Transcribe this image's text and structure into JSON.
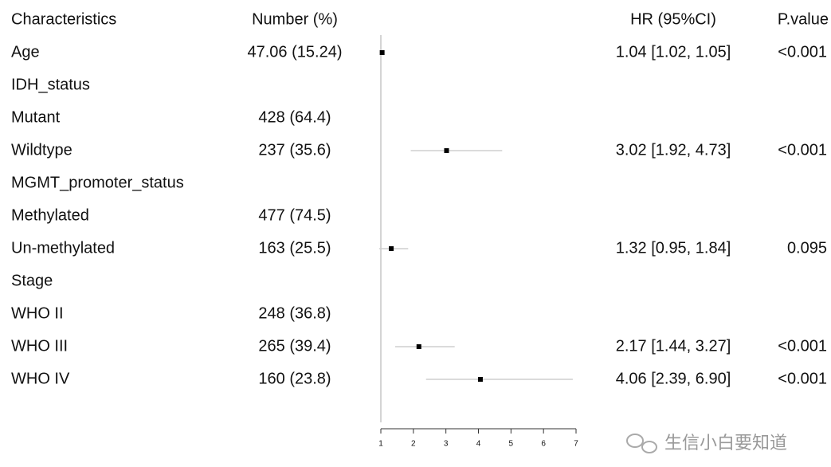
{
  "chart_data": {
    "type": "forest",
    "headers": [
      "Characteristics",
      "Number (%)",
      "HR (95%CI)",
      "P.value"
    ],
    "rows": [
      {
        "label": "Age",
        "number": "47.06 (15.24)",
        "hr": 1.04,
        "lower": 1.02,
        "upper": 1.05,
        "ci_text": "1.04 [1.02, 1.05]",
        "p": "<0.001"
      },
      {
        "label": "IDH_status"
      },
      {
        "label": "Mutant",
        "number": "428 (64.4)"
      },
      {
        "label": "Wildtype",
        "number": "237 (35.6)",
        "hr": 3.02,
        "lower": 1.92,
        "upper": 4.73,
        "ci_text": "3.02 [1.92, 4.73]",
        "p": "<0.001"
      },
      {
        "label": "MGMT_promoter_status"
      },
      {
        "label": "Methylated",
        "number": "477 (74.5)"
      },
      {
        "label": "Un-methylated",
        "number": "163 (25.5)",
        "hr": 1.32,
        "lower": 0.95,
        "upper": 1.84,
        "ci_text": "1.32 [0.95, 1.84]",
        "p": "0.095"
      },
      {
        "label": "Stage"
      },
      {
        "label": "WHO II",
        "number": "248 (36.8)"
      },
      {
        "label": "WHO III",
        "number": "265 (39.4)",
        "hr": 2.17,
        "lower": 1.44,
        "upper": 3.27,
        "ci_text": "2.17 [1.44, 3.27]",
        "p": "<0.001"
      },
      {
        "label": "WHO IV",
        "number": "160 (23.8)",
        "hr": 4.06,
        "lower": 2.39,
        "upper": 6.9,
        "ci_text": "4.06 [2.39, 6.90]",
        "p": "<0.001"
      }
    ],
    "xlim": [
      1,
      7
    ],
    "xticks": [
      1,
      2,
      3,
      4,
      5,
      6,
      7
    ],
    "reference": 1,
    "color": "#000000",
    "ci_color": "#cfcfcf",
    "watermark": "生信小白要知道"
  }
}
